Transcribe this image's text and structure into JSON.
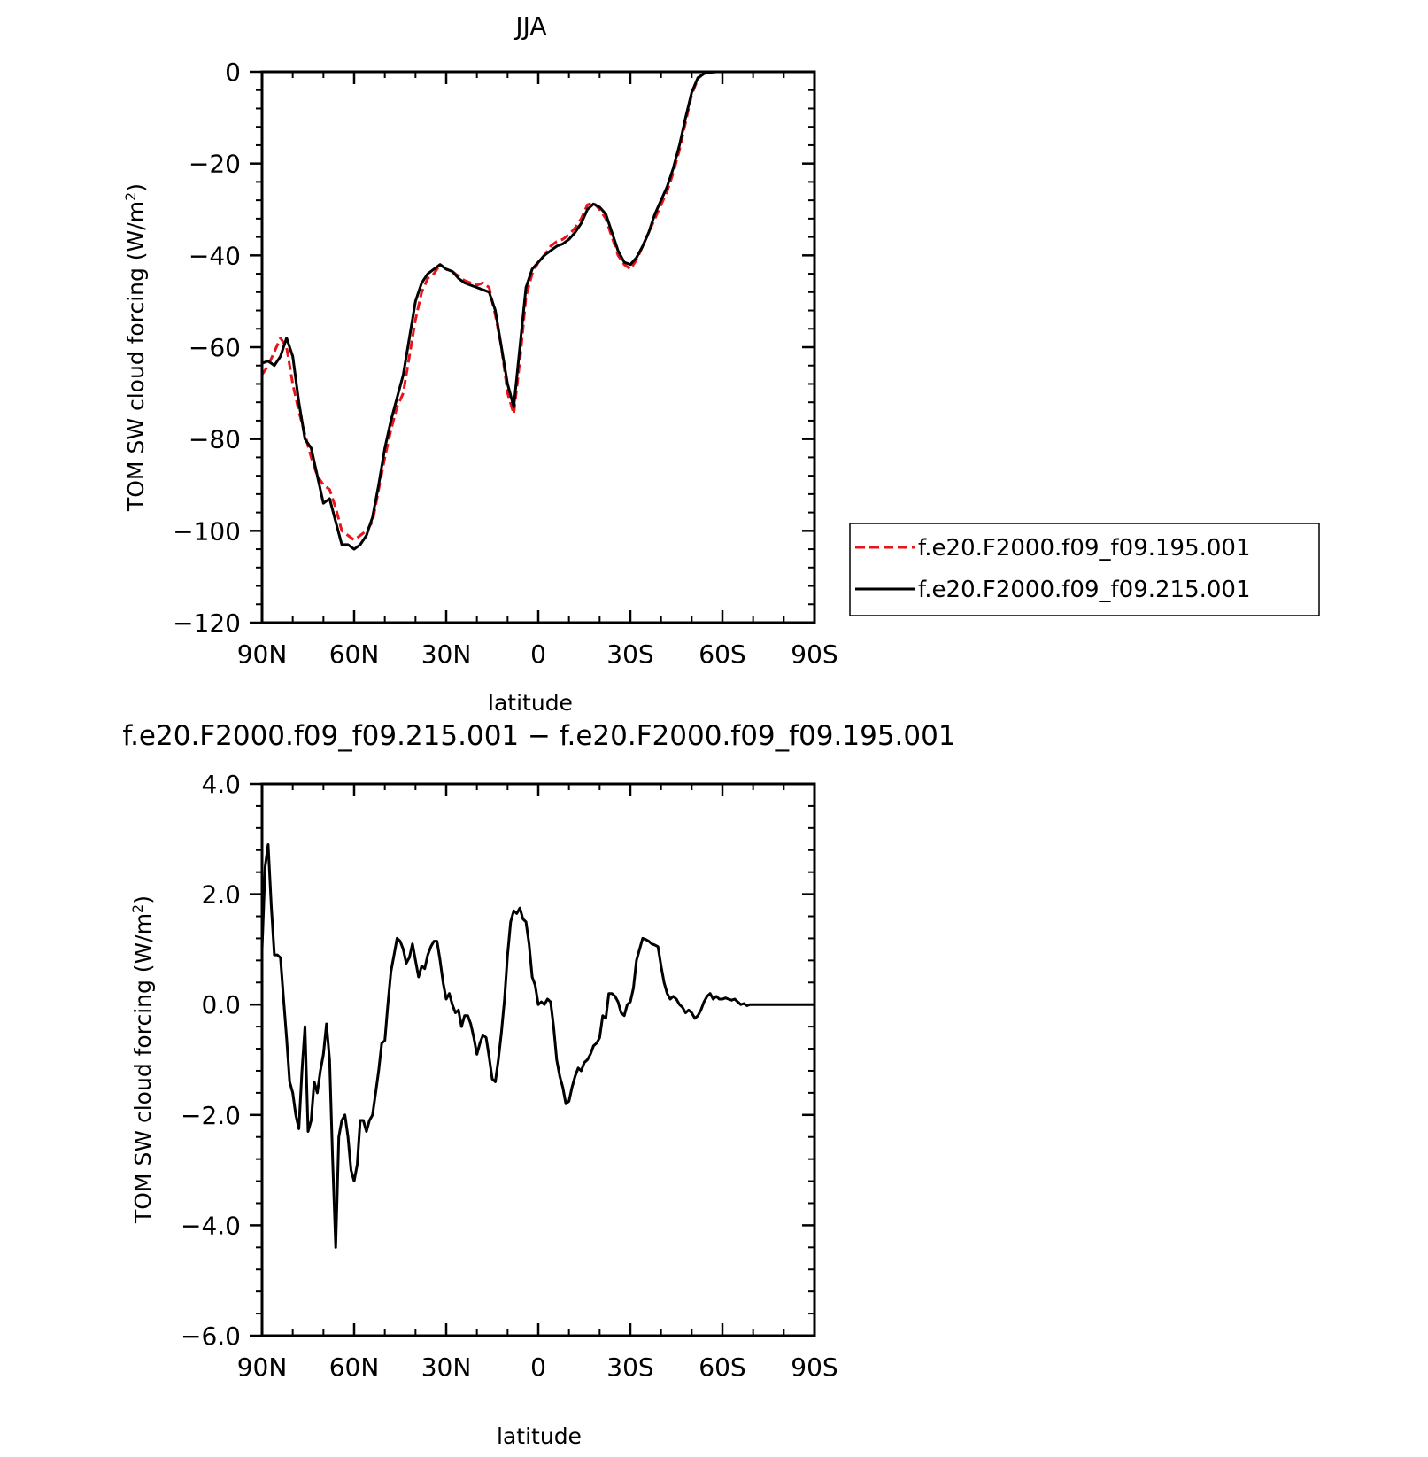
{
  "chart_data": [
    {
      "type": "line",
      "title": "JJA",
      "xlabel": "latitude",
      "ylabel": "TOM SW cloud forcing (W/m²)",
      "ylabel_main": "TOM SW cloud forcing (W/m",
      "ylabel_sup": "2",
      "ylabel_close": ")",
      "xlim": [
        90,
        -90
      ],
      "ylim": [
        -120,
        0
      ],
      "xticks": [
        90,
        60,
        30,
        0,
        -30,
        -60,
        -90
      ],
      "xtick_labels": [
        "90N",
        "60N",
        "30N",
        "0",
        "30S",
        "60S",
        "90S"
      ],
      "yticks": [
        0,
        -20,
        -40,
        -60,
        -80,
        -100,
        -120
      ],
      "ytick_labels": [
        "0",
        "−20",
        "−40",
        "−60",
        "−80",
        "−100",
        "−120"
      ],
      "grid": false,
      "legend_position": "right",
      "series": [
        {
          "name": "f.e20.F2000.f09_f09.195.001",
          "color": "#e8141c",
          "dash": "dashed",
          "x": [
            90,
            88,
            86,
            84,
            82,
            80,
            78,
            76,
            74,
            72,
            70,
            68,
            66,
            64,
            62,
            60,
            58,
            56,
            54,
            52,
            50,
            48,
            46,
            44,
            42,
            40,
            38,
            36,
            34,
            32,
            30,
            28,
            26,
            24,
            22,
            20,
            18,
            16,
            14,
            12,
            10,
            8,
            6,
            4,
            2,
            0,
            -2,
            -4,
            -6,
            -8,
            -10,
            -12,
            -14,
            -16,
            -18,
            -20,
            -22,
            -24,
            -26,
            -28,
            -30,
            -32,
            -34,
            -36,
            -38,
            -40,
            -42,
            -44,
            -46,
            -48,
            -50,
            -52,
            -54,
            -56,
            -58,
            -60,
            -62,
            -64,
            -66,
            -68,
            -70,
            -72,
            -74,
            -76,
            -78,
            -80,
            -82,
            -84,
            -86,
            -88,
            -90
          ],
          "y": [
            -66,
            -64,
            -61,
            -58,
            -60,
            -68,
            -74,
            -79,
            -84,
            -88,
            -90,
            -91,
            -95,
            -100,
            -101,
            -102,
            -101,
            -100,
            -98,
            -91,
            -84,
            -78,
            -73,
            -70,
            -62,
            -54,
            -48,
            -45,
            -44,
            -42,
            -43,
            -43.5,
            -44.5,
            -45.5,
            -46,
            -46.5,
            -46,
            -47,
            -53,
            -60,
            -70,
            -74.5,
            -63,
            -49,
            -44,
            -41.5,
            -40,
            -38,
            -37,
            -36.5,
            -35.5,
            -34,
            -32,
            -29,
            -28.5,
            -30,
            -32,
            -36,
            -40,
            -42,
            -43,
            -41,
            -38,
            -35,
            -32,
            -29,
            -26,
            -22,
            -17,
            -11,
            -5,
            -1.5,
            -0.3,
            -0.1,
            0,
            0,
            0,
            0,
            0,
            0,
            0,
            0,
            0,
            0,
            0,
            0,
            0,
            0,
            0,
            0,
            0
          ]
        },
        {
          "name": "f.e20.F2000.f09_f09.215.001",
          "color": "#000000",
          "dash": "solid",
          "x": [
            90,
            88,
            86,
            84,
            82,
            80,
            78,
            76,
            74,
            72,
            70,
            68,
            66,
            64,
            62,
            60,
            58,
            56,
            54,
            52,
            50,
            48,
            46,
            44,
            42,
            40,
            38,
            36,
            34,
            32,
            30,
            28,
            26,
            24,
            22,
            20,
            18,
            16,
            14,
            12,
            10,
            8,
            6,
            4,
            2,
            0,
            -2,
            -4,
            -6,
            -8,
            -10,
            -12,
            -14,
            -16,
            -18,
            -20,
            -22,
            -24,
            -26,
            -28,
            -30,
            -32,
            -34,
            -36,
            -38,
            -40,
            -42,
            -44,
            -46,
            -48,
            -50,
            -52,
            -54,
            -56,
            -58,
            -60,
            -62,
            -64,
            -66,
            -68,
            -70,
            -72,
            -74,
            -76,
            -78,
            -80,
            -82,
            -84,
            -86,
            -88,
            -90
          ],
          "y": [
            -63.5,
            -63,
            -64,
            -62,
            -58,
            -62,
            -72,
            -80,
            -82,
            -88,
            -94,
            -93,
            -98,
            -103,
            -103,
            -104,
            -103,
            -101,
            -97,
            -90,
            -82,
            -76,
            -71,
            -66,
            -58,
            -50,
            -46,
            -44,
            -43,
            -42,
            -43,
            -43.5,
            -45,
            -46,
            -46.5,
            -47,
            -47.5,
            -48,
            -52,
            -60,
            -68,
            -73,
            -60,
            -47,
            -43,
            -41.5,
            -40,
            -39,
            -38,
            -37.5,
            -36.5,
            -35,
            -33,
            -30,
            -28.8,
            -29.5,
            -31,
            -35,
            -39,
            -41.5,
            -42,
            -40.5,
            -38,
            -35,
            -31,
            -28,
            -25,
            -21,
            -16,
            -10,
            -4.5,
            -1.3,
            -0.4,
            -0.1,
            0,
            0,
            0,
            0,
            0,
            0,
            0,
            0,
            0,
            0,
            0,
            0,
            0,
            0,
            0,
            0,
            0
          ]
        }
      ]
    },
    {
      "type": "line",
      "title": "f.e20.F2000.f09_f09.215.001 − f.e20.F2000.f09_f09.195.001",
      "xlabel": "latitude",
      "ylabel": "TOM SW cloud forcing (W/m²)",
      "ylabel_main": "TOM SW cloud forcing (W/m",
      "ylabel_sup": "2",
      "ylabel_close": ")",
      "xlim": [
        90,
        -90
      ],
      "ylim": [
        -6,
        4
      ],
      "xticks": [
        90,
        60,
        30,
        0,
        -30,
        -60,
        -90
      ],
      "xtick_labels": [
        "90N",
        "60N",
        "30N",
        "0",
        "30S",
        "60S",
        "90S"
      ],
      "yticks": [
        4,
        2,
        0,
        -2,
        -4,
        -6
      ],
      "ytick_labels": [
        "4.0",
        "2.0",
        "0.0",
        "−2.0",
        "−4.0",
        "−6.0"
      ],
      "grid": false,
      "series": [
        {
          "color": "#000000",
          "dash": "solid",
          "x": [
            90,
            89,
            88,
            87,
            86,
            85,
            84,
            83,
            82,
            81,
            80,
            79,
            78,
            77,
            76,
            75,
            74,
            73,
            72,
            71,
            70,
            69,
            68,
            67,
            66,
            65,
            64,
            63,
            62,
            61,
            60,
            59,
            58,
            57,
            56,
            55,
            54,
            53,
            52,
            51,
            50,
            49,
            48,
            47,
            46,
            45,
            44,
            43,
            42,
            41,
            40,
            39,
            38,
            37,
            36,
            35,
            34,
            33,
            32,
            31,
            30,
            29,
            28,
            27,
            26,
            25,
            24,
            23,
            22,
            21,
            20,
            19,
            18,
            17,
            16,
            15,
            14,
            13,
            12,
            11,
            10,
            9,
            8,
            7,
            6,
            5,
            4,
            3,
            2,
            1,
            0,
            -1,
            -2,
            -3,
            -4,
            -5,
            -6,
            -7,
            -8,
            -9,
            -10,
            -11,
            -12,
            -13,
            -14,
            -15,
            -16,
            -17,
            -18,
            -19,
            -20,
            -21,
            -22,
            -23,
            -24,
            -25,
            -26,
            -27,
            -28,
            -29,
            -30,
            -31,
            -32,
            -33,
            -34,
            -35,
            -36,
            -37,
            -38,
            -39,
            -40,
            -41,
            -42,
            -43,
            -44,
            -45,
            -46,
            -47,
            -48,
            -49,
            -50,
            -51,
            -52,
            -53,
            -54,
            -55,
            -56,
            -57,
            -58,
            -59,
            -60,
            -61,
            -62,
            -63,
            -64,
            -65,
            -66,
            -67,
            -68,
            -69,
            -70,
            -75,
            -80,
            -85,
            -90
          ],
          "y": [
            1.0,
            2.5,
            2.9,
            1.8,
            0.9,
            0.9,
            0.85,
            0.1,
            -0.6,
            -1.4,
            -1.6,
            -2.0,
            -2.25,
            -1.2,
            -0.4,
            -2.3,
            -2.1,
            -1.4,
            -1.6,
            -1.2,
            -0.9,
            -0.35,
            -1.0,
            -2.8,
            -4.4,
            -2.4,
            -2.1,
            -2.0,
            -2.4,
            -3.0,
            -3.2,
            -2.9,
            -2.1,
            -2.1,
            -2.3,
            -2.1,
            -2.0,
            -1.6,
            -1.2,
            -0.7,
            -0.65,
            0.0,
            0.6,
            0.9,
            1.2,
            1.15,
            1.0,
            0.75,
            0.85,
            1.1,
            0.8,
            0.5,
            0.7,
            0.65,
            0.9,
            1.05,
            1.15,
            1.15,
            0.8,
            0.4,
            0.1,
            0.2,
            0.0,
            -0.15,
            -0.1,
            -0.4,
            -0.2,
            -0.2,
            -0.35,
            -0.6,
            -0.9,
            -0.7,
            -0.55,
            -0.6,
            -0.95,
            -1.35,
            -1.4,
            -1.0,
            -0.5,
            0.1,
            0.9,
            1.5,
            1.7,
            1.65,
            1.75,
            1.55,
            1.5,
            1.1,
            0.5,
            0.35,
            0.0,
            0.05,
            0.0,
            0.1,
            0.05,
            -0.4,
            -1.0,
            -1.3,
            -1.5,
            -1.8,
            -1.75,
            -1.5,
            -1.3,
            -1.15,
            -1.2,
            -1.05,
            -1.0,
            -0.9,
            -0.75,
            -0.7,
            -0.6,
            -0.2,
            -0.25,
            0.2,
            0.2,
            0.15,
            0.05,
            -0.15,
            -0.2,
            0.0,
            0.05,
            0.3,
            0.8,
            1.0,
            1.2,
            1.18,
            1.15,
            1.1,
            1.08,
            1.05,
            0.7,
            0.4,
            0.2,
            0.1,
            0.15,
            0.1,
            0.0,
            -0.05,
            -0.15,
            -0.1,
            -0.15,
            -0.25,
            -0.2,
            -0.1,
            0.05,
            0.15,
            0.2,
            0.1,
            0.15,
            0.1,
            0.1,
            0.12,
            0.1,
            0.08,
            0.1,
            0.05,
            0.0,
            0.02,
            -0.02,
            0.0,
            0.0,
            0.0,
            0.0,
            0.0,
            0.0
          ]
        }
      ]
    }
  ]
}
